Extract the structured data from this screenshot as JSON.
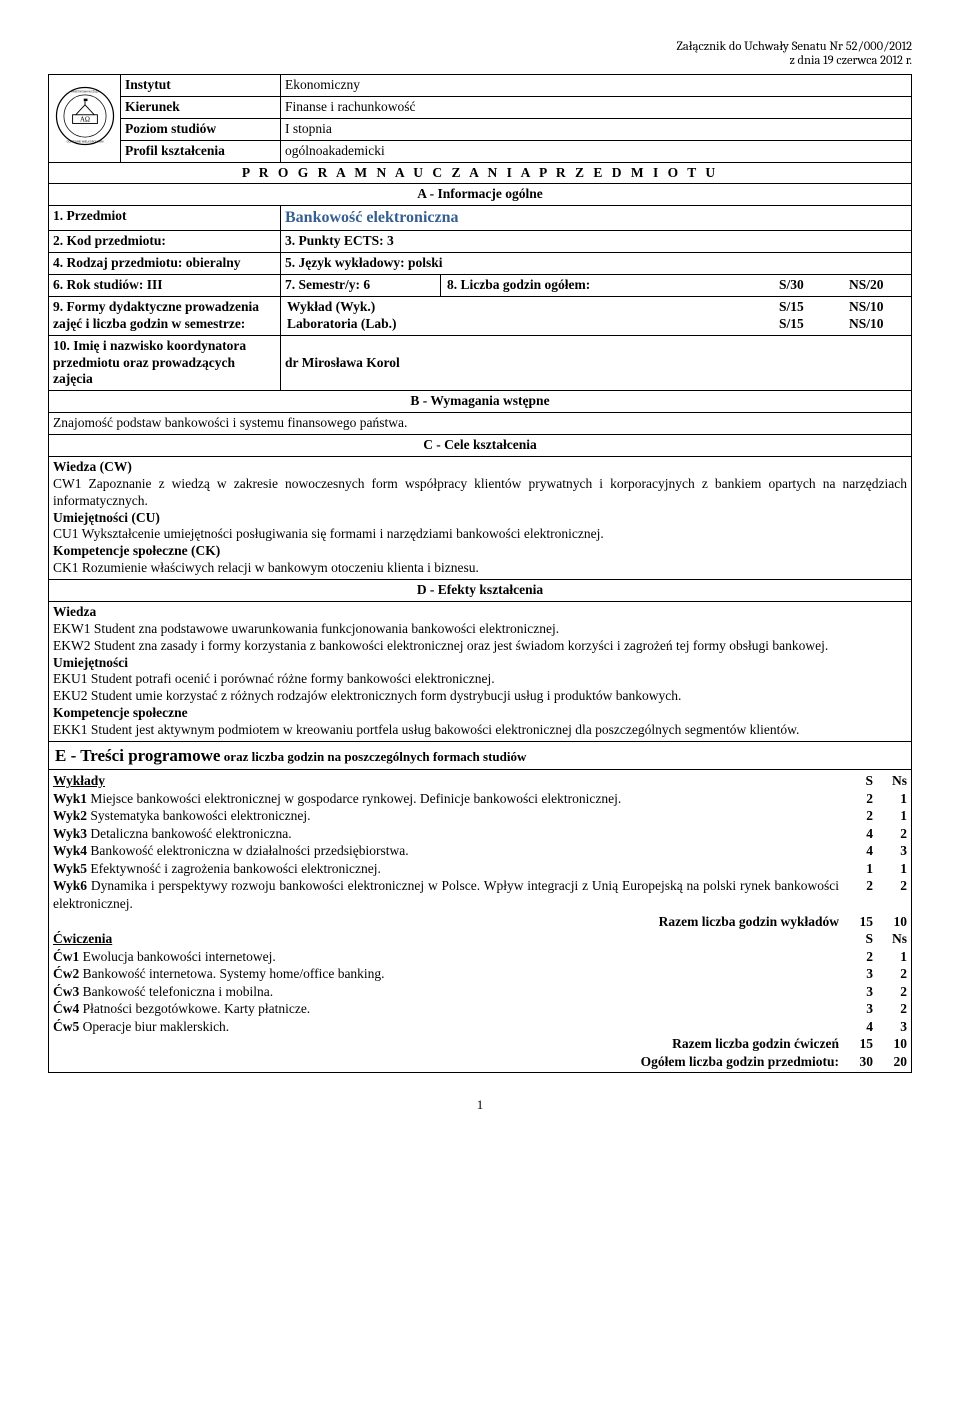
{
  "header": {
    "line1": "Załącznik do Uchwały Senatu Nr 52/000/2012",
    "line2": "z dnia 19 czerwca 2012 r."
  },
  "info": {
    "instytut_label": "Instytut",
    "instytut_val": "Ekonomiczny",
    "kierunek_label": "Kierunek",
    "kierunek_val": "Finanse i rachunkowość",
    "poziom_label": "Poziom studiów",
    "poziom_val": "I stopnia",
    "profil_label": "Profil kształcenia",
    "profil_val": "ogólnoakademicki",
    "program_title": "P R O G R A M   N A U C Z A N I A   P R Z E D M I O T U",
    "section_a": "A - Informacje ogólne"
  },
  "rows": {
    "r1a": "1. Przedmiot",
    "r1b": "Bankowość elektroniczna",
    "r2a": "2. Kod przedmiotu:",
    "r2b": "3. Punkty ECTS: 3",
    "r3a": "4. Rodzaj przedmiotu: obieralny",
    "r3b": "5. Język wykładowy: polski",
    "r4a": "6. Rok studiów: III",
    "r4b": "7. Semestr/y: 6",
    "r4c_lbl": "8. Liczba godzin ogółem:",
    "r4c_s": "S/30",
    "r4c_ns": "NS/20",
    "r5a": "9. Formy dydaktyczne prowadzenia zajęć i liczba godzin w semestrze:",
    "r5b_l1a": "Wykład  (Wyk.)",
    "r5b_l1b": "S/15",
    "r5b_l1c": "NS/10",
    "r5b_l2a": "Laboratoria (Lab.)",
    "r5b_l2b": "S/15",
    "r5b_l2c": "NS/10",
    "r6a": "10. Imię i nazwisko koordynatora przedmiotu oraz prowadzących zajęcia",
    "r6b": "dr Mirosława Korol"
  },
  "sections": {
    "b_title": "B - Wymagania wstępne",
    "b_text": "Znajomość podstaw bankowości i systemu finansowego państwa.",
    "c_title": "C - Cele kształcenia",
    "c_cw_h": "Wiedza (CW)",
    "c_cw": "CW1 Zapoznanie z wiedzą w zakresie nowoczesnych form współpracy klientów prywatnych i korporacyjnych z bankiem opartych na narzędziach informatycznych.",
    "c_cu_h": "Umiejętności (CU)",
    "c_cu": "CU1 Wykształcenie umiejętności posługiwania się formami i narzędziami bankowości elektronicznej.",
    "c_ck_h": "Kompetencje społeczne (CK)",
    "c_ck": "CK1 Rozumienie właściwych relacji w bankowym otoczeniu klienta i biznesu.",
    "d_title": "D - Efekty kształcenia",
    "d_w_h": "Wiedza",
    "d_w1": "EKW1 Student zna podstawowe uwarunkowania funkcjonowania bankowości elektronicznej.",
    "d_w2": "EKW2 Student zna zasady i formy korzystania z bankowości elektronicznej oraz jest świadom korzyści i zagrożeń tej formy obsługi bankowej.",
    "d_u_h": "Umiejętności",
    "d_u1": "EKU1 Student potrafi ocenić i porównać różne formy bankowości elektronicznej.",
    "d_u2": "EKU2 Student umie korzystać z różnych rodzajów elektronicznych form dystrybucji usług i produktów bankowych.",
    "d_k_h": "Kompetencje społeczne",
    "d_k1": "EKK1 Student jest aktywnym podmiotem w kreowaniu  portfela usług bakowości elektronicznej dla poszczególnych segmentów klientów.",
    "e_title_main": "E - Treści programowe",
    "e_title_sub": "  oraz liczba godzin na poszczególnych formach studiów"
  },
  "treci": {
    "wyk_h": "Wykłady",
    "s_h": "S",
    "ns_h": "Ns",
    "wyk": [
      {
        "l": "Wyk1",
        "t": "  Miejsce bankowości elektronicznej w gospodarce rynkowej. Definicje bankowości elektronicznej.",
        "s": "2",
        "ns": "1"
      },
      {
        "l": "Wyk2",
        "t": "  Systematyka bankowości elektronicznej.",
        "s": "2",
        "ns": "1"
      },
      {
        "l": "Wyk3",
        "t": "  Detaliczna bankowość elektroniczna.",
        "s": "4",
        "ns": "2"
      },
      {
        "l": "Wyk4",
        "t": "  Bankowość elektroniczna w działalności przedsiębiorstwa.",
        "s": "4",
        "ns": "3"
      },
      {
        "l": "Wyk5",
        "t": "  Efektywność i zagrożenia bankowości elektronicznej.",
        "s": "1",
        "ns": "1"
      },
      {
        "l": "Wyk6",
        "t": "  Dynamika i perspektywy rozwoju bankowości elektronicznej w Polsce. Wpływ integracji z Unią Europejską na polski rynek bankowości elektronicznej.",
        "s": "2",
        "ns": "2"
      }
    ],
    "wyk_sum_l": "Razem liczba godzin wykładów",
    "wyk_sum_s": "15",
    "wyk_sum_ns": "10",
    "cw_h": "Ćwiczenia",
    "cw": [
      {
        "l": "Ćw1",
        "t": " Ewolucja bankowości internetowej.",
        "s": "2",
        "ns": "1"
      },
      {
        "l": "Ćw2",
        "t": " Bankowość internetowa. Systemy home/office banking.",
        "s": "3",
        "ns": "2"
      },
      {
        "l": "Ćw3",
        "t": " Bankowość telefoniczna i mobilna.",
        "s": "3",
        "ns": "2"
      },
      {
        "l": "Ćw4",
        "t": " Płatności bezgotówkowe. Karty płatnicze.",
        "s": "3",
        "ns": "2"
      },
      {
        "l": "Ćw5",
        "t": " Operacje biur maklerskich.",
        "s": "4",
        "ns": "3"
      }
    ],
    "cw_sum_l": "Razem liczba godzin ćwiczeń",
    "cw_sum_s": "15",
    "cw_sum_ns": "10",
    "total_l": "Ogółem liczba godzin przedmiotu:",
    "total_s": "30",
    "total_ns": "20"
  },
  "page_num": "1"
}
